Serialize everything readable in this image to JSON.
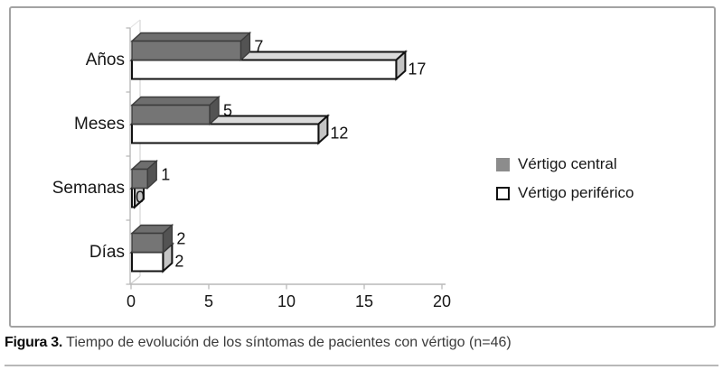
{
  "chart_data": {
    "type": "bar",
    "orientation": "horizontal",
    "style": "3d",
    "categories": [
      "Años",
      "Meses",
      "Semanas",
      "Días"
    ],
    "series": [
      {
        "name": "Vértigo central",
        "color": "#757575",
        "values": [
          7,
          5,
          1,
          2
        ]
      },
      {
        "name": "Vértigo periférico",
        "color": "#ffffff",
        "values": [
          17,
          12,
          0,
          2
        ]
      }
    ],
    "x_ticks": [
      "0",
      "5",
      "10",
      "15",
      "20"
    ],
    "xlim": [
      0,
      20
    ],
    "grid": false,
    "legend_position": "right",
    "data_labels": true
  },
  "legend": {
    "items": [
      {
        "label": "Vértigo central",
        "swatch": "#8c8c8c"
      },
      {
        "label": "Vértigo periférico",
        "swatch": "#ffffff"
      }
    ]
  },
  "caption": {
    "label": "Figura 3.",
    "text": " Tiempo de evolución de los síntomas de pacientes con vértigo (n=46)"
  },
  "colors": {
    "axis": "#b9b9b9",
    "back_wall": "#d9d9d9",
    "bar_gray_front": "#757575",
    "bar_gray_top": "#6e6e6e",
    "bar_gray_side": "#535353",
    "bar_gray_border": "#3c3c3c",
    "bar_white_front": "#ffffff",
    "bar_white_top": "#dadada",
    "bar_white_side": "#c4c4c4",
    "bar_white_border": "#121212",
    "frame_border": "#a3a3a3"
  }
}
